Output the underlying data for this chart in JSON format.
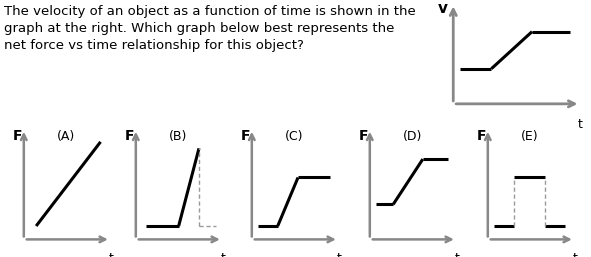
{
  "text": "The velocity of an object as a function of time is shown in the\ngraph at the right. Which graph below best represents the\nnet force vs time relationship for this object?",
  "text_fontsize": 9.5,
  "axis_color": "#888888",
  "line_color": "#000000",
  "dashed_color": "#999999",
  "label_fontsize": 10,
  "sublabel_fontsize": 9,
  "background": "#ffffff",
  "ref_graph": {
    "title": "v",
    "xlabel": "t",
    "segments": [
      {
        "x": [
          0.05,
          0.3
        ],
        "y": [
          0.35,
          0.35
        ]
      },
      {
        "x": [
          0.3,
          0.62
        ],
        "y": [
          0.35,
          0.72
        ]
      },
      {
        "x": [
          0.62,
          0.92
        ],
        "y": [
          0.72,
          0.72
        ]
      }
    ]
  },
  "graphs": [
    {
      "label": "(A)",
      "ylabel": "F",
      "xlabel": "t",
      "segments": [
        {
          "x": [
            0.12,
            0.88
          ],
          "y": [
            0.1,
            0.88
          ],
          "solid": true
        }
      ],
      "dashes": []
    },
    {
      "label": "(B)",
      "ylabel": "F",
      "xlabel": "t",
      "segments": [
        {
          "x": [
            0.1,
            0.48
          ],
          "y": [
            0.1,
            0.1
          ],
          "solid": true
        },
        {
          "x": [
            0.48,
            0.72
          ],
          "y": [
            0.1,
            0.82
          ],
          "solid": true
        }
      ],
      "dashes": [
        {
          "x": [
            0.72,
            0.72
          ],
          "y": [
            0.1,
            0.82
          ]
        },
        {
          "x": [
            0.72,
            0.92
          ],
          "y": [
            0.1,
            0.1
          ]
        }
      ]
    },
    {
      "label": "(C)",
      "ylabel": "F",
      "xlabel": "t",
      "segments": [
        {
          "x": [
            0.05,
            0.28
          ],
          "y": [
            0.1,
            0.1
          ],
          "solid": true
        },
        {
          "x": [
            0.28,
            0.52
          ],
          "y": [
            0.1,
            0.55
          ],
          "solid": true
        },
        {
          "x": [
            0.52,
            0.9
          ],
          "y": [
            0.55,
            0.55
          ],
          "solid": true
        }
      ],
      "dashes": []
    },
    {
      "label": "(D)",
      "ylabel": "F",
      "xlabel": "t",
      "segments": [
        {
          "x": [
            0.05,
            0.25
          ],
          "y": [
            0.3,
            0.3
          ],
          "solid": true
        },
        {
          "x": [
            0.25,
            0.6
          ],
          "y": [
            0.3,
            0.72
          ],
          "solid": true
        },
        {
          "x": [
            0.6,
            0.9
          ],
          "y": [
            0.72,
            0.72
          ],
          "solid": true
        }
      ],
      "dashes": []
    },
    {
      "label": "(E)",
      "ylabel": "F",
      "xlabel": "t",
      "segments": [
        {
          "x": [
            0.05,
            0.28
          ],
          "y": [
            0.1,
            0.1
          ],
          "solid": true
        },
        {
          "x": [
            0.28,
            0.65
          ],
          "y": [
            0.55,
            0.55
          ],
          "solid": true
        },
        {
          "x": [
            0.65,
            0.88
          ],
          "y": [
            0.1,
            0.1
          ],
          "solid": true
        }
      ],
      "dashes": [
        {
          "x": [
            0.28,
            0.28
          ],
          "y": [
            0.1,
            0.55
          ]
        },
        {
          "x": [
            0.65,
            0.65
          ],
          "y": [
            0.1,
            0.55
          ]
        }
      ]
    }
  ]
}
